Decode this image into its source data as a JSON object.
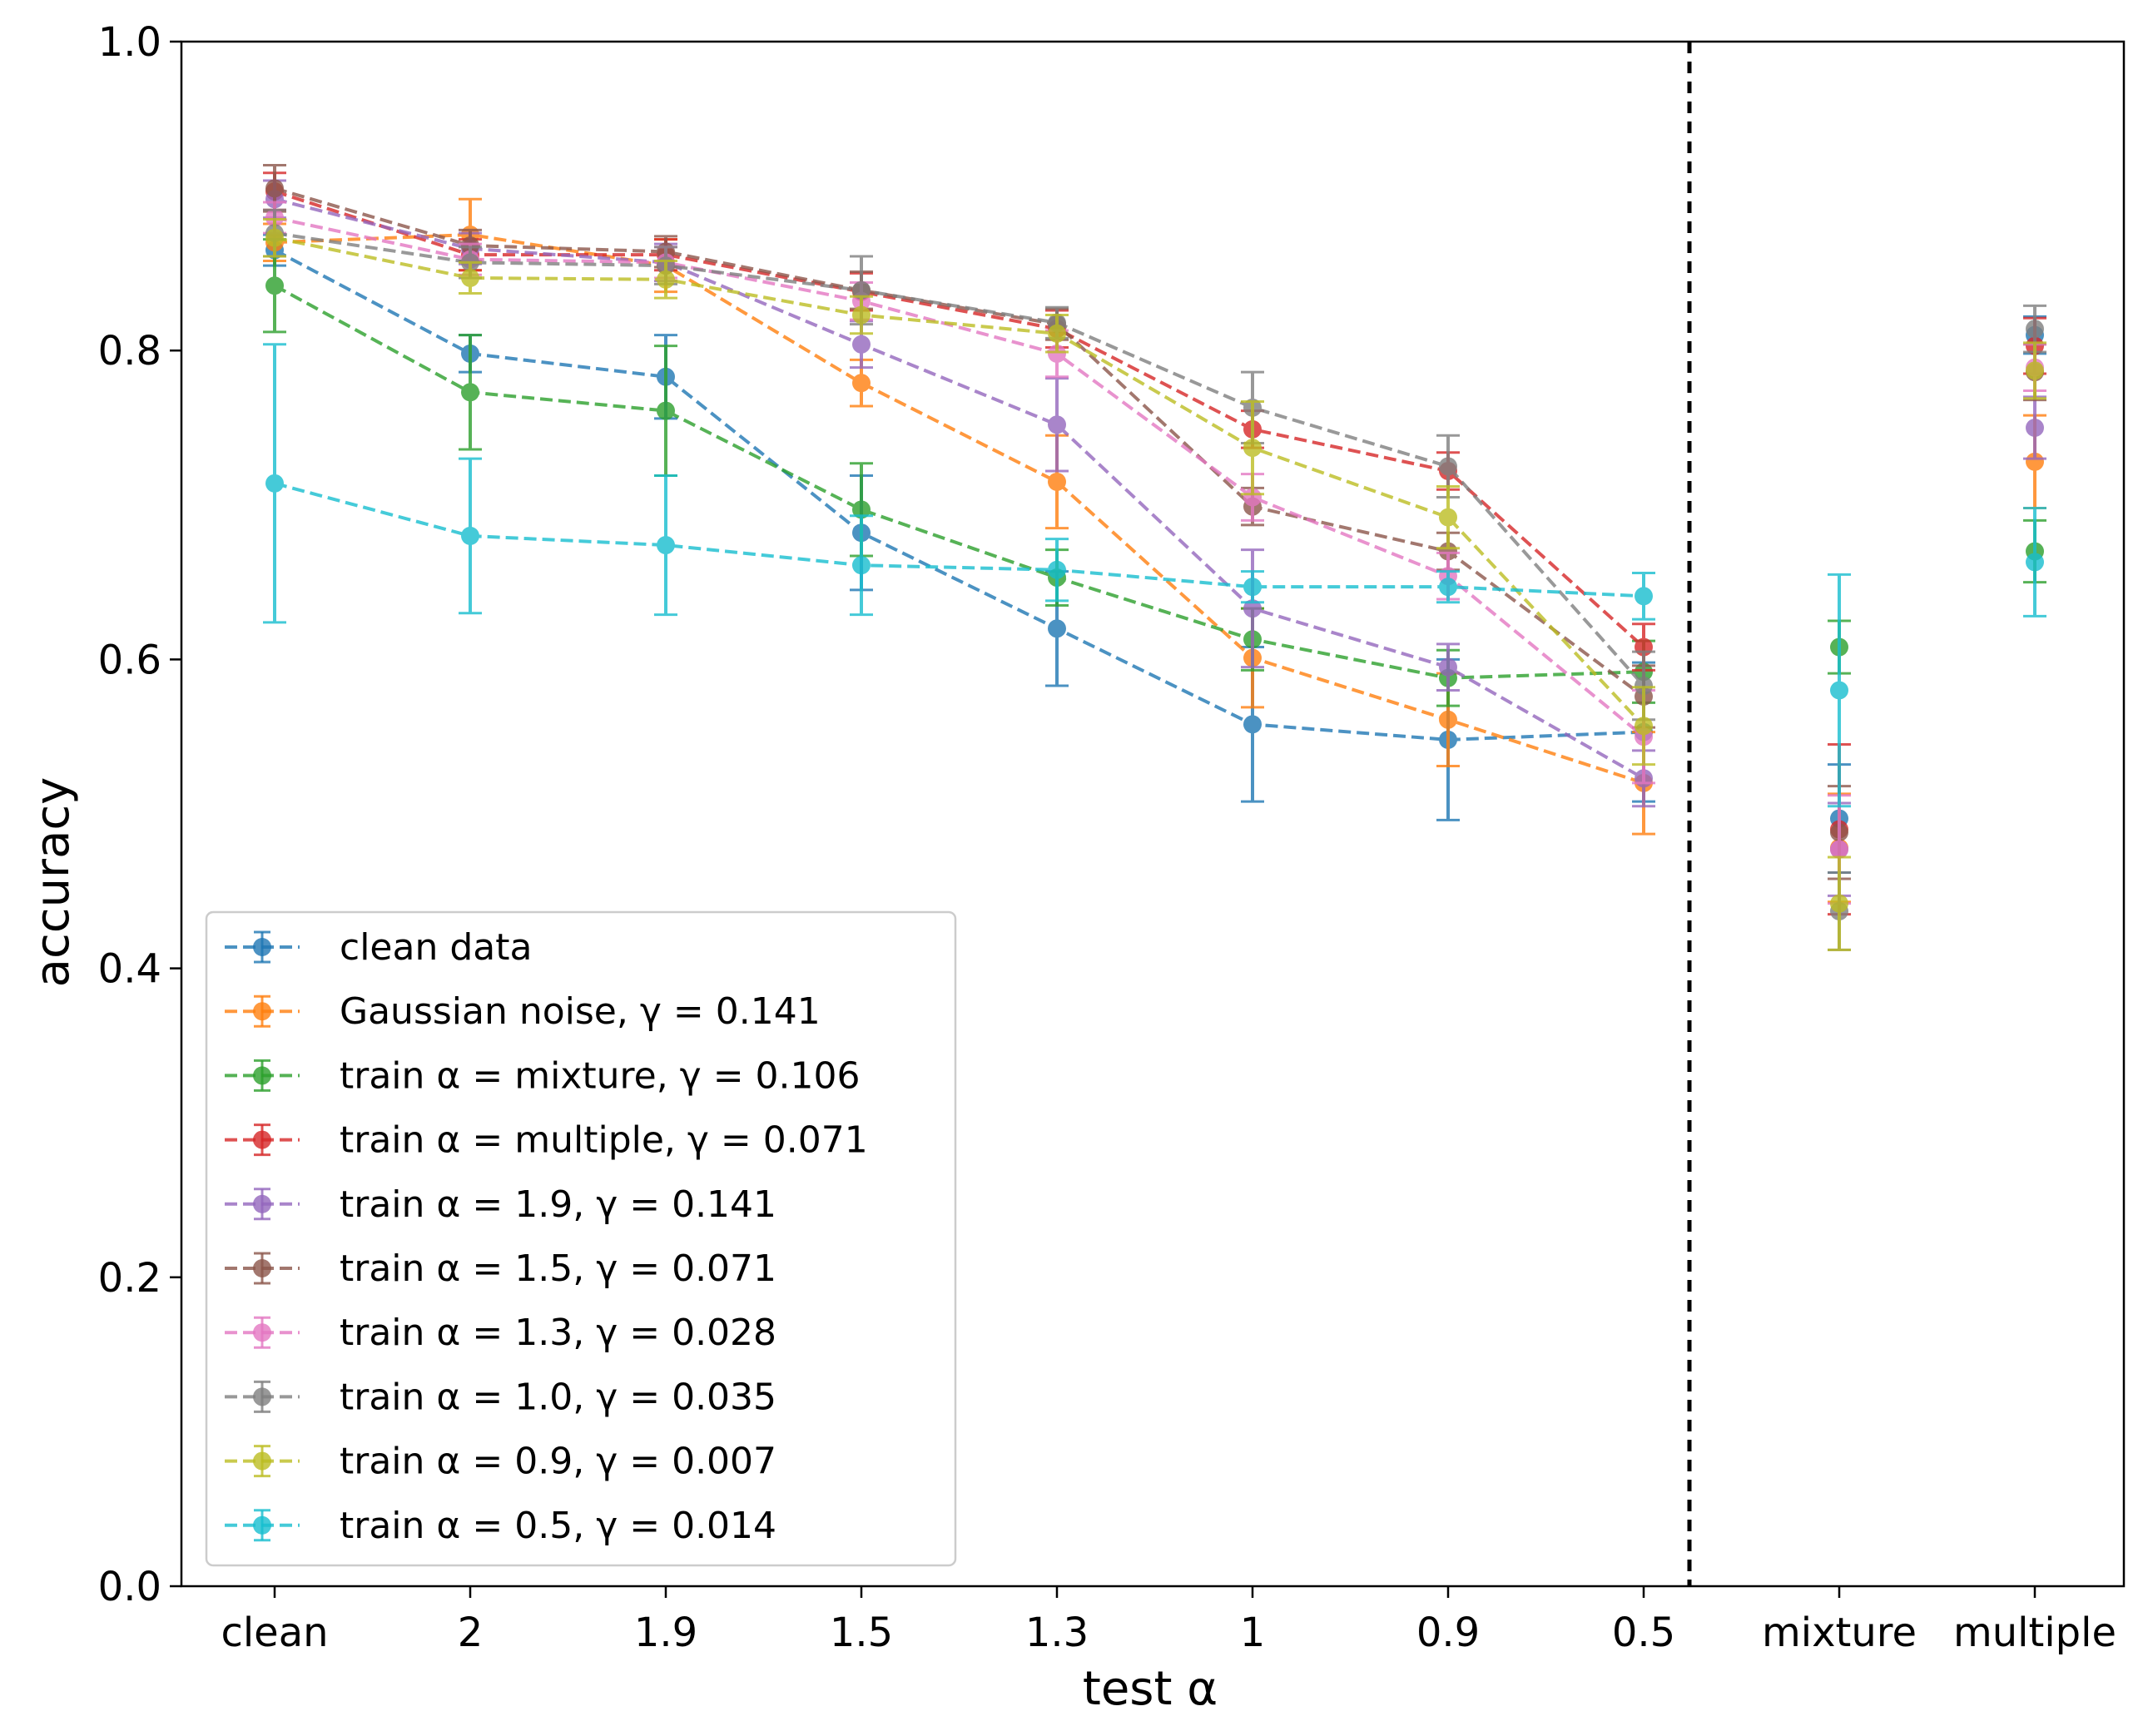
{
  "chart_data": {
    "type": "line",
    "title": "",
    "xlabel": "test α",
    "ylabel": "accuracy",
    "ylim": [
      0.0,
      1.0
    ],
    "yticks": [
      "0.0",
      "0.2",
      "0.4",
      "0.6",
      "0.8",
      "1.0"
    ],
    "categories": [
      "clean",
      "2",
      "1.9",
      "1.5",
      "1.3",
      "1",
      "0.9",
      "0.5",
      "mixture",
      "multiple"
    ],
    "separator_after_category": "0.5",
    "grid": false,
    "legend_position": "lower-left",
    "series": [
      {
        "name": "clean data",
        "color": "#1f77b4",
        "values": [
          0.865,
          0.798,
          0.783,
          0.682,
          0.62,
          0.558,
          0.548,
          0.553,
          0.497,
          0.81
        ],
        "errors": [
          0.01,
          0.012,
          0.027,
          0.037,
          0.037,
          0.05,
          0.052,
          0.045,
          0.035,
          0.012
        ]
      },
      {
        "name": "Gaussian noise, γ = 0.141",
        "color": "#ff7f0e",
        "values": [
          0.87,
          0.875,
          0.855,
          0.779,
          0.715,
          0.601,
          0.561,
          0.52,
          0.478,
          0.728
        ],
        "errors": [
          0.012,
          0.023,
          0.017,
          0.015,
          0.03,
          0.032,
          0.03,
          0.033,
          0.035,
          0.03
        ]
      },
      {
        "name": "train α = mixture, γ = 0.106",
        "color": "#2ca02c",
        "values": [
          0.842,
          0.773,
          0.761,
          0.697,
          0.653,
          0.613,
          0.588,
          0.592,
          0.608,
          0.67
        ],
        "errors": [
          0.03,
          0.037,
          0.042,
          0.03,
          0.018,
          0.02,
          0.018,
          0.02,
          0.017,
          0.02
        ]
      },
      {
        "name": "train α = multiple, γ = 0.071",
        "color": "#d62728",
        "values": [
          0.903,
          0.862,
          0.862,
          0.838,
          0.814,
          0.749,
          0.722,
          0.608,
          0.49,
          0.803
        ],
        "errors": [
          0.012,
          0.01,
          0.01,
          0.012,
          0.012,
          0.012,
          0.012,
          0.015,
          0.055,
          0.018
        ]
      },
      {
        "name": "train α = 1.9, γ = 0.141",
        "color": "#9467bd",
        "values": [
          0.898,
          0.866,
          0.857,
          0.804,
          0.752,
          0.633,
          0.595,
          0.523,
          0.477,
          0.75
        ],
        "errors": [
          0.012,
          0.01,
          0.012,
          0.015,
          0.03,
          0.038,
          0.015,
          0.018,
          0.03,
          0.02
        ]
      },
      {
        "name": "train α = 1.5, γ = 0.071",
        "color": "#8c564b",
        "values": [
          0.905,
          0.868,
          0.864,
          0.839,
          0.817,
          0.699,
          0.67,
          0.576,
          0.488,
          0.786
        ],
        "errors": [
          0.015,
          0.01,
          0.01,
          0.012,
          0.01,
          0.012,
          0.012,
          0.02,
          0.03,
          0.018
        ]
      },
      {
        "name": "train α = 1.3, γ = 0.028",
        "color": "#e377c2",
        "values": [
          0.886,
          0.859,
          0.857,
          0.832,
          0.798,
          0.705,
          0.654,
          0.55,
          0.477,
          0.789
        ],
        "errors": [
          0.01,
          0.01,
          0.01,
          0.012,
          0.015,
          0.015,
          0.015,
          0.03,
          0.035,
          0.015
        ]
      },
      {
        "name": "train α = 1.0, γ = 0.035",
        "color": "#7f7f7f",
        "values": [
          0.876,
          0.857,
          0.855,
          0.839,
          0.818,
          0.763,
          0.725,
          0.583,
          0.437,
          0.814
        ],
        "errors": [
          0.015,
          0.01,
          0.012,
          0.022,
          0.01,
          0.023,
          0.02,
          0.022,
          0.025,
          0.015
        ]
      },
      {
        "name": "train α = 0.9, γ = 0.007",
        "color": "#bcbd22",
        "values": [
          0.873,
          0.847,
          0.846,
          0.823,
          0.811,
          0.737,
          0.692,
          0.557,
          0.442,
          0.787
        ],
        "errors": [
          0.012,
          0.01,
          0.012,
          0.012,
          0.012,
          0.03,
          0.02,
          0.025,
          0.03,
          0.018
        ]
      },
      {
        "name": "train α = 0.5, γ = 0.014",
        "color": "#17becf",
        "values": [
          0.714,
          0.68,
          0.674,
          0.661,
          0.658,
          0.647,
          0.647,
          0.641,
          0.58,
          0.663
        ],
        "errors": [
          0.09,
          0.05,
          0.045,
          0.032,
          0.02,
          0.01,
          0.01,
          0.015,
          0.075,
          0.035
        ]
      }
    ]
  }
}
